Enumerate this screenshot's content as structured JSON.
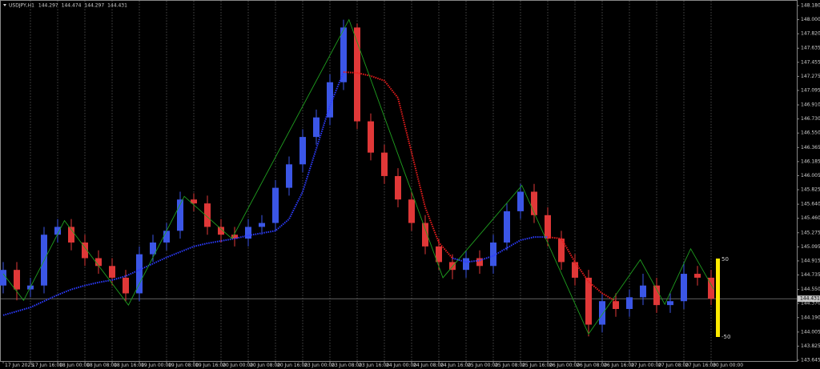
{
  "chart_data": {
    "type": "candlestick",
    "symbol": "USDJPY,H1",
    "ohlc_header": [
      144.297,
      144.474,
      144.297,
      144.431
    ],
    "up_color": "#3b56e6",
    "down_color": "#e03838",
    "xlim": [
      -0.4,
      54.5
    ],
    "xticks": [
      {
        "value": 0,
        "label": "17 Jun 2025"
      },
      {
        "value": 2,
        "label": "17 Jun 16:00"
      },
      {
        "value": 4,
        "label": "18 Jun 00:00"
      },
      {
        "value": 6,
        "label": "18 Jun 08:00"
      },
      {
        "value": 8,
        "label": "18 Jun 16:00"
      },
      {
        "value": 10,
        "label": "19 Jun 00:00"
      },
      {
        "value": 12,
        "label": "19 Jun 08:00"
      },
      {
        "value": 14,
        "label": "19 Jun 16:00"
      },
      {
        "value": 16,
        "label": "20 Jun 00:00"
      },
      {
        "value": 18,
        "label": "20 Jun 08:00"
      },
      {
        "value": 20,
        "label": "20 Jun 16:00"
      },
      {
        "value": 22,
        "label": "23 Jun 00:00"
      },
      {
        "value": 24,
        "label": "23 Jun 08:00"
      },
      {
        "value": 26,
        "label": "23 Jun 16:00"
      },
      {
        "value": 28,
        "label": "24 Jun 00:00"
      },
      {
        "value": 30,
        "label": "24 Jun 08:00"
      },
      {
        "value": 32,
        "label": "24 Jun 16:00"
      },
      {
        "value": 34,
        "label": "25 Jun 00:00"
      },
      {
        "value": 36,
        "label": "25 Jun 08:00"
      },
      {
        "value": 38,
        "label": "25 Jun 16:00"
      },
      {
        "value": 40,
        "label": "26 Jun 00:00"
      },
      {
        "value": 42,
        "label": "26 Jun 08:00"
      },
      {
        "value": 44,
        "label": "26 Jun 16:00"
      },
      {
        "value": 46,
        "label": "27 Jun 00:00"
      },
      {
        "value": 48,
        "label": "27 Jun 08:00"
      },
      {
        "value": 50,
        "label": "27 Jun 16:00"
      },
      {
        "value": 52,
        "label": "30 Jun 00:00"
      }
    ],
    "ylim": [
      143.645,
      148.18
    ],
    "yticks": [
      {
        "value": 148.18,
        "label": "148.180"
      },
      {
        "value": 148,
        "label": "148.000"
      },
      {
        "value": 147.82,
        "label": "147.820"
      },
      147.635,
      147.455,
      147.275,
      147.095,
      {
        "value": 146.91,
        "label": "146.910"
      },
      {
        "value": 146.73,
        "label": "146.730"
      },
      {
        "value": 146.55,
        "label": "146.550"
      },
      146.365,
      146.185,
      146.005,
      145.825,
      {
        "value": 145.64,
        "label": "145.640"
      },
      {
        "value": 145.46,
        "label": "145.460"
      },
      145.275,
      145.095,
      144.915,
      144.735,
      {
        "value": 144.55,
        "label": "144.550"
      },
      {
        "value": 144.37,
        "label": "144.370"
      },
      {
        "value": 144.19,
        "label": "144.190"
      },
      144.005,
      143.825,
      143.645
    ],
    "open": [
      144.6,
      144.8,
      144.55,
      144.6,
      145.25,
      145.35,
      145.15,
      144.95,
      144.85,
      144.7,
      144.5,
      145.0,
      145.15,
      145.3,
      145.7,
      145.65,
      145.35,
      145.25,
      145.2,
      145.35,
      145.4,
      145.85,
      146.15,
      146.5,
      146.75,
      147.2,
      147.9,
      146.7,
      146.3,
      146.0,
      145.7,
      145.4,
      145.1,
      144.9,
      144.8,
      144.95,
      144.85,
      145.15,
      145.55,
      145.8,
      145.5,
      145.2,
      144.9,
      144.7,
      144.1,
      144.4,
      144.3,
      144.45,
      144.6,
      144.35,
      144.4,
      144.75,
      144.7
    ],
    "high": [
      144.9,
      144.9,
      144.7,
      145.35,
      145.45,
      145.45,
      145.25,
      145.05,
      144.95,
      144.8,
      145.1,
      145.25,
      145.4,
      145.8,
      145.78,
      145.75,
      145.45,
      145.35,
      145.45,
      145.5,
      145.95,
      146.25,
      146.6,
      146.85,
      147.3,
      148.0,
      147.95,
      146.8,
      146.4,
      146.1,
      145.8,
      145.5,
      145.2,
      145.0,
      145.05,
      145.05,
      145.25,
      145.65,
      145.9,
      145.9,
      145.6,
      145.3,
      145.0,
      144.8,
      144.5,
      144.5,
      144.55,
      144.75,
      144.7,
      144.5,
      144.9,
      144.85,
      144.8
    ],
    "low": [
      144.5,
      144.41,
      144.45,
      144.5,
      145.15,
      145.05,
      144.85,
      144.75,
      144.6,
      144.4,
      144.4,
      144.9,
      145.05,
      145.2,
      145.55,
      145.25,
      145.15,
      145.1,
      145.1,
      145.25,
      145.3,
      145.75,
      146.05,
      146.4,
      146.65,
      147.1,
      146.6,
      146.2,
      145.9,
      145.6,
      145.3,
      145.0,
      144.8,
      144.68,
      144.7,
      144.75,
      144.75,
      145.05,
      145.45,
      145.4,
      145.1,
      144.8,
      144.6,
      143.95,
      144.0,
      144.2,
      144.2,
      144.35,
      144.25,
      144.25,
      144.3,
      144.6,
      144.35
    ],
    "close": [
      144.8,
      144.55,
      144.6,
      145.25,
      145.35,
      145.15,
      144.95,
      144.85,
      144.7,
      144.5,
      145.0,
      145.15,
      145.3,
      145.7,
      145.65,
      145.35,
      145.25,
      145.2,
      145.35,
      145.4,
      145.85,
      146.15,
      146.5,
      146.75,
      147.2,
      147.9,
      146.7,
      146.3,
      146.0,
      145.7,
      145.4,
      145.1,
      144.9,
      144.8,
      144.95,
      144.85,
      145.15,
      145.55,
      145.8,
      145.5,
      145.2,
      144.9,
      144.7,
      144.1,
      144.4,
      144.3,
      144.45,
      144.6,
      144.35,
      144.4,
      144.75,
      144.7,
      144.43
    ],
    "zigzag": {
      "color": "#1f9e1f",
      "x": [
        0,
        1.5,
        4.5,
        9.2,
        13.3,
        16.8,
        25.4,
        32.3,
        38.1,
        43,
        46.8,
        48.6,
        50.5,
        52.2
      ],
      "values": [
        144.75,
        144.41,
        145.43,
        144.35,
        145.74,
        145.2,
        148.0,
        144.7,
        145.88,
        143.98,
        144.93,
        144.36,
        145.07,
        144.55
      ]
    },
    "trails": [
      {
        "color": "#2d3cff",
        "x": [
          0,
          1,
          2,
          3,
          4,
          5,
          6,
          7,
          8,
          9,
          10,
          11,
          12,
          13,
          14,
          15,
          16,
          17,
          18,
          19,
          20,
          21,
          22,
          23,
          24,
          25
        ],
        "values": [
          144.22,
          144.27,
          144.32,
          144.4,
          144.48,
          144.55,
          144.6,
          144.64,
          144.67,
          144.72,
          144.8,
          144.88,
          144.96,
          145.03,
          145.1,
          145.14,
          145.17,
          145.2,
          145.24,
          145.27,
          145.3,
          145.45,
          145.8,
          146.35,
          146.9,
          147.33
        ]
      },
      {
        "color": "#e81c1c",
        "x": [
          25,
          26,
          27,
          28,
          29,
          30,
          31,
          32,
          33
        ],
        "values": [
          147.33,
          147.32,
          147.28,
          147.22,
          147.0,
          146.3,
          145.6,
          145.15,
          144.95
        ]
      },
      {
        "color": "#2d3cff",
        "x": [
          33,
          34,
          35,
          36,
          37,
          38,
          39,
          40
        ],
        "values": [
          144.95,
          144.9,
          144.92,
          144.98,
          145.08,
          145.18,
          145.22,
          145.22
        ]
      },
      {
        "color": "#e81c1c",
        "x": [
          40,
          41,
          42,
          43,
          44,
          45
        ],
        "values": [
          145.22,
          145.2,
          144.9,
          144.65,
          144.5,
          144.4
        ]
      }
    ],
    "current_price": 144.431,
    "scale_bar": {
      "color": "#ffea00",
      "top": 50,
      "bottom": -50
    },
    "grid": true
  }
}
